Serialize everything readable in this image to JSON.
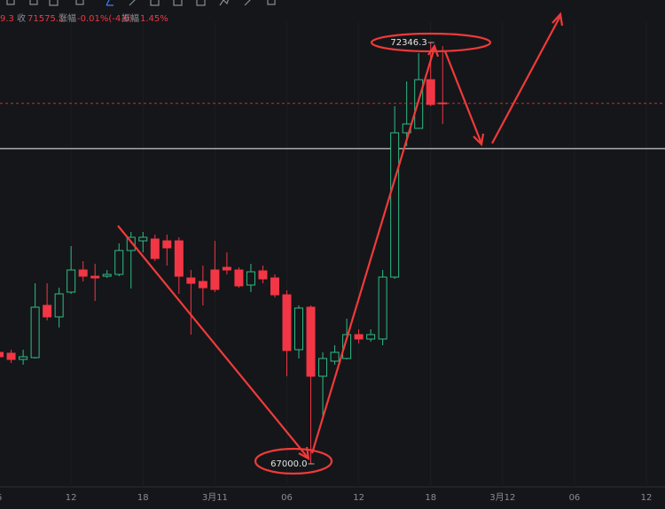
{
  "header": {
    "partial": "9.3",
    "close_label": "收",
    "close": "71575.1",
    "change_label": "涨幅",
    "change": "-0.01%(-4.0)",
    "amp_label": "振幅",
    "amp": "1.45%"
  },
  "chart_data": {
    "type": "candlestick",
    "x": [
      0,
      1,
      2,
      3,
      4,
      5,
      6,
      7,
      8,
      9,
      10,
      11,
      12,
      13,
      14,
      15,
      16,
      17,
      18,
      19,
      20,
      21,
      22,
      23,
      24,
      25,
      26,
      27,
      28,
      29,
      30,
      31,
      32,
      33,
      34,
      35,
      36,
      37
    ],
    "open": [
      68415,
      68404,
      68325,
      68348,
      69011,
      68865,
      69179,
      69460,
      69381,
      69381,
      69404,
      69707,
      69830,
      69853,
      69830,
      69830,
      69359,
      69314,
      69460,
      69494,
      69460,
      69269,
      69449,
      69359,
      69145,
      68449,
      68988,
      68112,
      68303,
      68337,
      68640,
      68584,
      68584,
      69370,
      71201,
      71257,
      71875,
      71580
    ],
    "high": [
      68460,
      68449,
      68449,
      69291,
      69291,
      69235,
      69763,
      69572,
      69538,
      69460,
      69797,
      69943,
      69943,
      69909,
      69909,
      69875,
      69460,
      69516,
      69830,
      69684,
      69494,
      69538,
      69516,
      69404,
      69201,
      69011,
      69011,
      68415,
      68505,
      68842,
      68707,
      68707,
      69460,
      71538,
      71852,
      72212,
      72346.3,
      72302
    ],
    "low": [
      68303,
      68280,
      68258,
      68337,
      68820,
      68730,
      69157,
      69314,
      69067,
      69359,
      69381,
      69224,
      69684,
      69572,
      69516,
      69157,
      68640,
      69011,
      69179,
      69404,
      69235,
      69179,
      69291,
      69112,
      68112,
      68337,
      67000,
      67607,
      68258,
      68325,
      68528,
      68550,
      68505,
      69347,
      71032,
      71257,
      71538,
      71313
    ],
    "close": [
      68359,
      68325,
      68359,
      68988,
      68865,
      69157,
      69460,
      69381,
      69359,
      69404,
      69707,
      69875,
      69875,
      69606,
      69741,
      69381,
      69291,
      69235,
      69213,
      69460,
      69258,
      69437,
      69347,
      69145,
      68438,
      68977,
      68112,
      68337,
      68415,
      68640,
      68584,
      68640,
      69370,
      71201,
      71313,
      71875,
      71560,
      71575.1
    ],
    "up_color": "#2ebd85",
    "down_color": "#f23645",
    "xlim": [
      0.07,
      55.55
    ],
    "xticks": [
      {
        "value": 0,
        "label": "6"
      },
      {
        "value": 6,
        "label": "12"
      },
      {
        "value": 12,
        "label": "18"
      },
      {
        "value": 18,
        "label": "3月11"
      },
      {
        "value": 24,
        "label": "06"
      },
      {
        "value": 30,
        "label": "12"
      },
      {
        "value": 36,
        "label": "18"
      },
      {
        "value": 42,
        "label": "3月12"
      },
      {
        "value": 48,
        "label": "06"
      },
      {
        "value": 54,
        "label": "12"
      }
    ],
    "ylim": [
      66708,
      72605
    ],
    "hline": {
      "value": 71000,
      "color": "#c8c8c8"
    },
    "annotations": [
      72346.3,
      {
        "value": 67000,
        "label": "67000.0"
      }
    ]
  }
}
